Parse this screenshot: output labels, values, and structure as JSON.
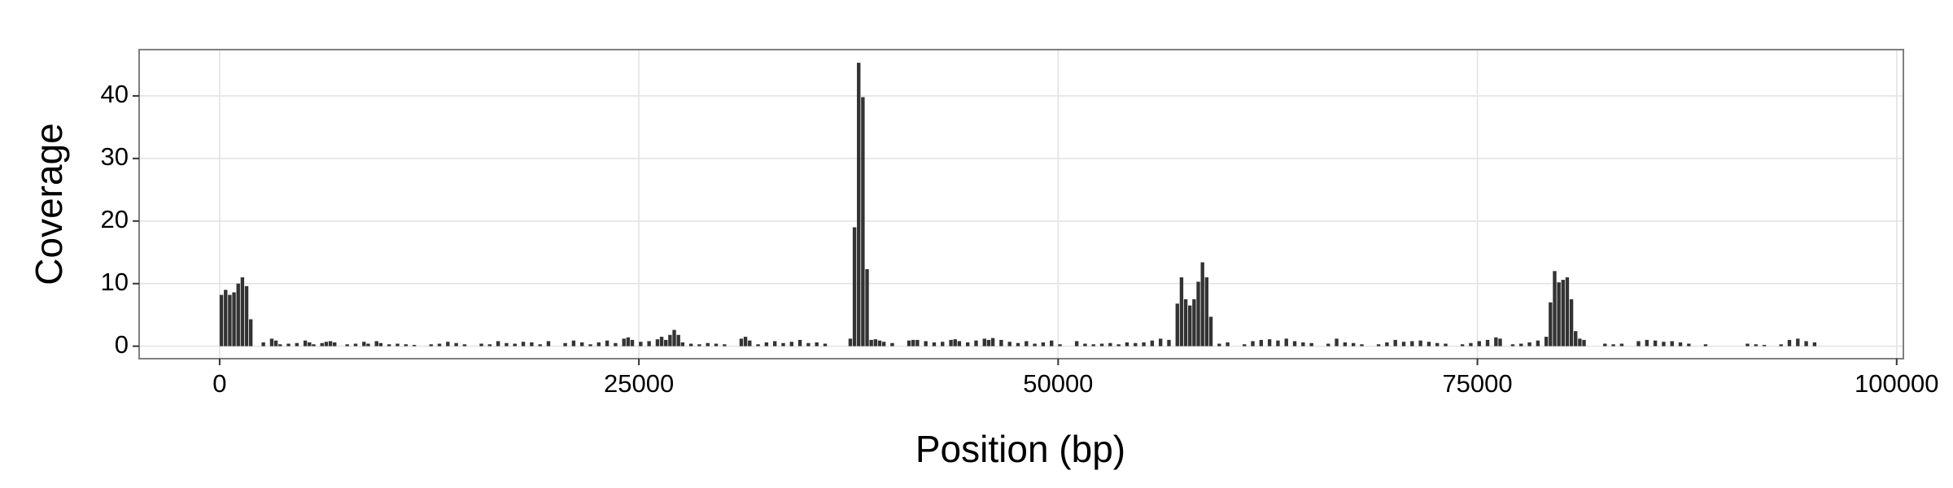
{
  "chart_data": {
    "type": "bar",
    "xlabel": "Position (bp)",
    "ylabel": "Coverage",
    "color": "#333333",
    "grid": true,
    "xlim": [
      -4800,
      100400
    ],
    "ylim": [
      -2,
      47.4
    ],
    "xticks": [
      0,
      25000,
      50000,
      75000,
      100000
    ],
    "yticks": [
      0,
      10,
      20,
      30,
      40
    ],
    "x": [
      0,
      250,
      500,
      750,
      1000,
      1250,
      1500,
      1750,
      2500,
      3000,
      3250,
      3500,
      4000,
      4500,
      5000,
      5250,
      5500,
      6000,
      6250,
      6500,
      6750,
      7500,
      8000,
      8500,
      8750,
      9250,
      9500,
      10000,
      10500,
      11000,
      11500,
      12500,
      13000,
      13500,
      14000,
      14500,
      15500,
      16000,
      16500,
      17000,
      17500,
      18000,
      18500,
      19000,
      19500,
      20500,
      21000,
      21500,
      22000,
      22500,
      23000,
      23500,
      24000,
      24250,
      24500,
      25000,
      25500,
      26000,
      26250,
      26500,
      26750,
      27000,
      27250,
      27500,
      28000,
      28500,
      29000,
      29500,
      30000,
      31000,
      31250,
      31500,
      32000,
      32500,
      33000,
      33500,
      34000,
      34500,
      35000,
      35500,
      36000,
      37500,
      37750,
      38000,
      38250,
      38500,
      38750,
      39000,
      39250,
      39500,
      40000,
      41000,
      41250,
      41500,
      42000,
      42500,
      43000,
      43500,
      43750,
      44000,
      44500,
      45000,
      45500,
      45750,
      46000,
      46500,
      47000,
      47500,
      48000,
      48500,
      49000,
      49500,
      50000,
      51000,
      51500,
      52000,
      52500,
      53000,
      53500,
      54000,
      54500,
      55000,
      55500,
      56000,
      56500,
      57000,
      57250,
      57500,
      57750,
      58000,
      58250,
      58500,
      58750,
      59000,
      59500,
      60000,
      61000,
      61500,
      62000,
      62500,
      63000,
      63500,
      64000,
      64500,
      65000,
      66000,
      66500,
      67000,
      67500,
      68000,
      69000,
      69500,
      70000,
      70500,
      71000,
      71500,
      72000,
      72500,
      73000,
      74000,
      74500,
      75000,
      75500,
      76000,
      76250,
      77000,
      77500,
      78000,
      78500,
      79000,
      79250,
      79500,
      79750,
      80000,
      80250,
      80500,
      80750,
      81000,
      81250,
      82500,
      83000,
      83500,
      84500,
      85000,
      85500,
      86000,
      86500,
      87000,
      87500,
      88500,
      91000,
      91500,
      92000,
      93000,
      93500,
      94000,
      94500,
      95000
    ],
    "values": [
      8.2,
      9.0,
      8.2,
      8.6,
      10.0,
      11.0,
      9.6,
      4.3,
      0.6,
      1.2,
      0.9,
      0.3,
      0.4,
      0.5,
      0.9,
      0.6,
      0.3,
      0.5,
      0.7,
      0.8,
      0.6,
      0.3,
      0.4,
      0.7,
      0.4,
      0.8,
      0.5,
      0.3,
      0.4,
      0.3,
      0.2,
      0.3,
      0.4,
      0.7,
      0.5,
      0.3,
      0.4,
      0.3,
      0.8,
      0.5,
      0.4,
      0.7,
      0.6,
      0.3,
      0.8,
      0.5,
      0.9,
      0.6,
      0.3,
      0.6,
      0.9,
      0.5,
      1.2,
      1.4,
      1.0,
      0.7,
      0.8,
      1.1,
      1.5,
      1.0,
      1.8,
      2.6,
      1.8,
      0.6,
      0.4,
      0.3,
      0.5,
      0.4,
      0.3,
      1.2,
      1.5,
      0.9,
      0.3,
      0.6,
      0.8,
      0.5,
      0.7,
      1.0,
      0.5,
      0.6,
      0.4,
      1.2,
      19.0,
      45.3,
      39.8,
      12.3,
      1.0,
      1.1,
      0.9,
      0.7,
      0.5,
      0.9,
      1.0,
      1.0,
      0.8,
      0.6,
      0.7,
      1.0,
      1.1,
      0.8,
      0.6,
      0.9,
      1.2,
      1.0,
      1.3,
      1.0,
      0.7,
      0.5,
      0.8,
      0.4,
      0.6,
      0.9,
      0.3,
      0.8,
      0.4,
      0.3,
      0.4,
      0.5,
      0.3,
      0.6,
      0.5,
      0.6,
      0.9,
      1.2,
      1.0,
      6.8,
      11.0,
      7.5,
      6.5,
      7.5,
      10.3,
      13.4,
      11.0,
      4.7,
      0.4,
      0.6,
      0.3,
      0.8,
      1.0,
      1.1,
      0.9,
      1.2,
      0.8,
      0.6,
      0.5,
      0.4,
      1.2,
      0.6,
      0.5,
      0.3,
      0.3,
      0.6,
      1.0,
      0.7,
      0.8,
      0.9,
      0.7,
      0.5,
      0.4,
      0.3,
      0.5,
      0.8,
      1.0,
      1.4,
      1.2,
      0.3,
      0.4,
      0.6,
      0.9,
      1.5,
      7.0,
      12.0,
      10.2,
      10.6,
      11.0,
      7.5,
      2.4,
      1.2,
      1.0,
      0.4,
      0.3,
      0.4,
      0.8,
      1.0,
      0.9,
      0.7,
      0.8,
      0.6,
      0.4,
      0.3,
      0.4,
      0.3,
      0.2,
      0.3,
      1.0,
      1.2,
      0.8,
      0.6
    ]
  }
}
